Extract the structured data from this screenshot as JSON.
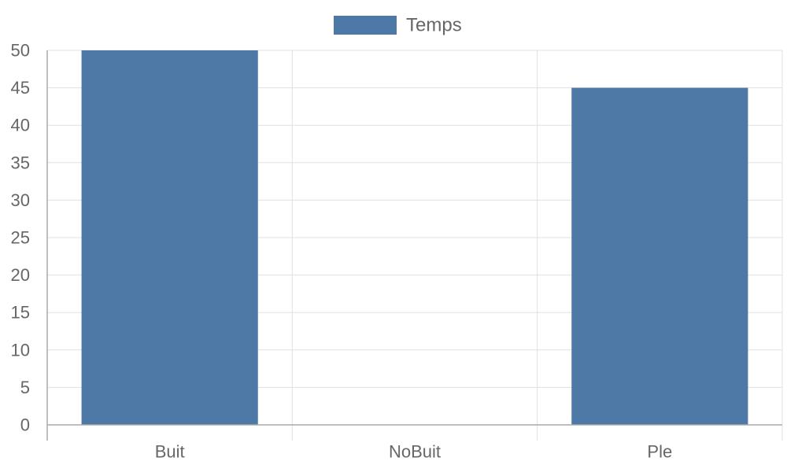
{
  "chart_data": {
    "type": "bar",
    "categories": [
      "Buit",
      "NoBuit",
      "Ple"
    ],
    "series": [
      {
        "name": "Temps",
        "values": [
          50,
          0,
          45
        ],
        "color": "#4e79a7"
      }
    ],
    "title": "",
    "xlabel": "",
    "ylabel": "",
    "ylim": [
      0,
      50
    ],
    "y_ticks": [
      0,
      5,
      10,
      15,
      20,
      25,
      30,
      35,
      40,
      45,
      50
    ],
    "grid": true,
    "legend_position": "top-center"
  },
  "colors": {
    "grid": "#e0e0e0",
    "axis": "#aaaaaa",
    "text": "#666666"
  }
}
